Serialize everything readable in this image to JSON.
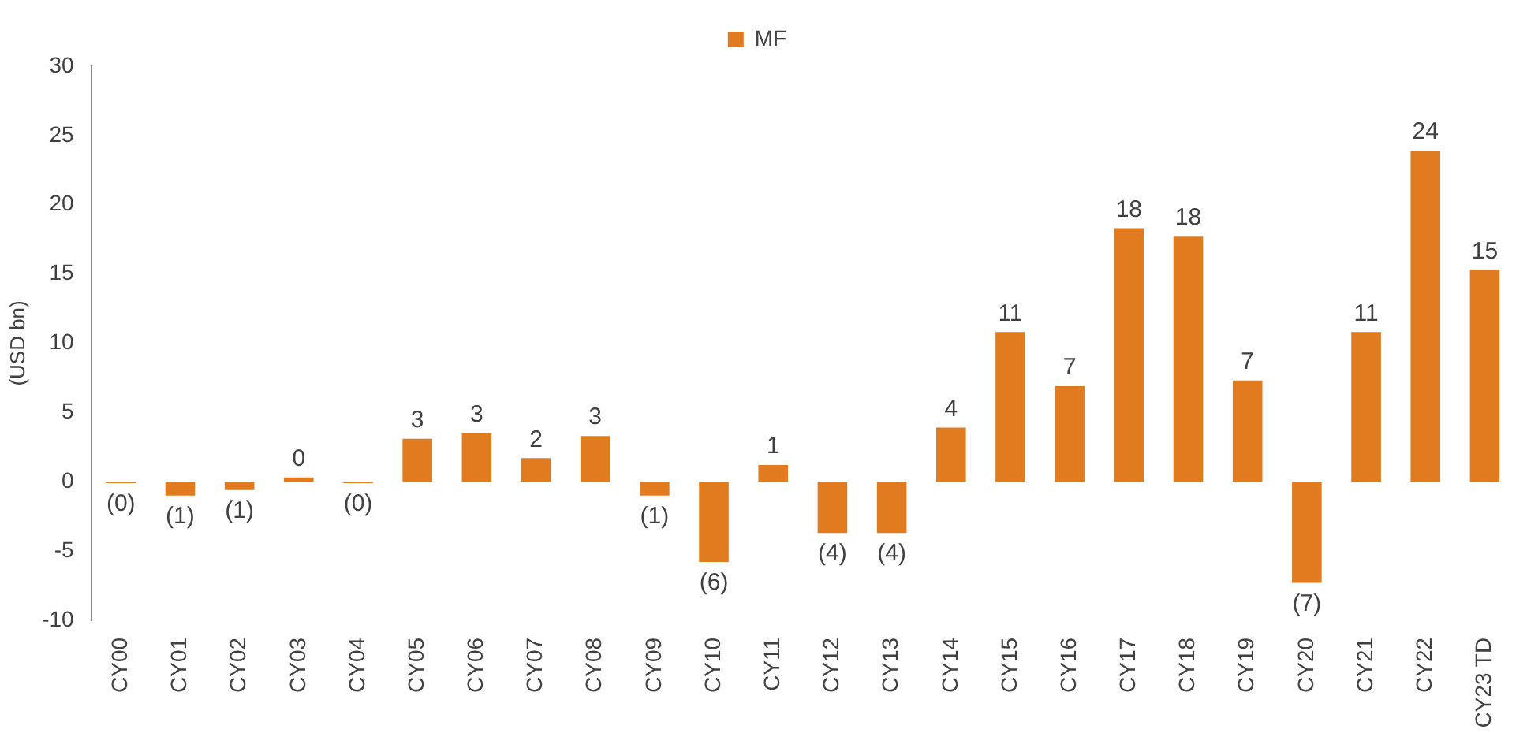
{
  "chart_data": {
    "type": "bar",
    "ylabel": "(USD bn)",
    "categories": [
      "CY00",
      "CY01",
      "CY02",
      "CY03",
      "CY04",
      "CY05",
      "CY06",
      "CY07",
      "CY08",
      "CY09",
      "CY10",
      "CY11",
      "CY12",
      "CY13",
      "CY14",
      "CY15",
      "CY16",
      "CY17",
      "CY18",
      "CY19",
      "CY20",
      "CY21",
      "CY22",
      "CY23 TD"
    ],
    "series": [
      {
        "name": "MF",
        "color": "#e07b20",
        "values": [
          -0.1,
          -1.0,
          -0.6,
          0.3,
          -0.1,
          3.1,
          3.5,
          1.7,
          3.3,
          -1.0,
          -5.8,
          1.2,
          -3.7,
          -3.7,
          3.9,
          10.8,
          6.9,
          18.3,
          17.7,
          7.3,
          -7.3,
          10.8,
          23.9,
          15.3
        ],
        "value_labels": [
          "(0)",
          "(1)",
          "(1)",
          "0",
          "(0)",
          "3",
          "3",
          "2",
          "3",
          "(1)",
          "(6)",
          "1",
          "(4)",
          "(4)",
          "4",
          "11",
          "7",
          "18",
          "18",
          "7",
          "(7)",
          "11",
          "24",
          "15"
        ]
      }
    ],
    "ylim": [
      -10,
      30
    ],
    "yticks": [
      -10,
      -5,
      0,
      5,
      10,
      15,
      20,
      25,
      30
    ],
    "grid": false,
    "legend": "top"
  }
}
